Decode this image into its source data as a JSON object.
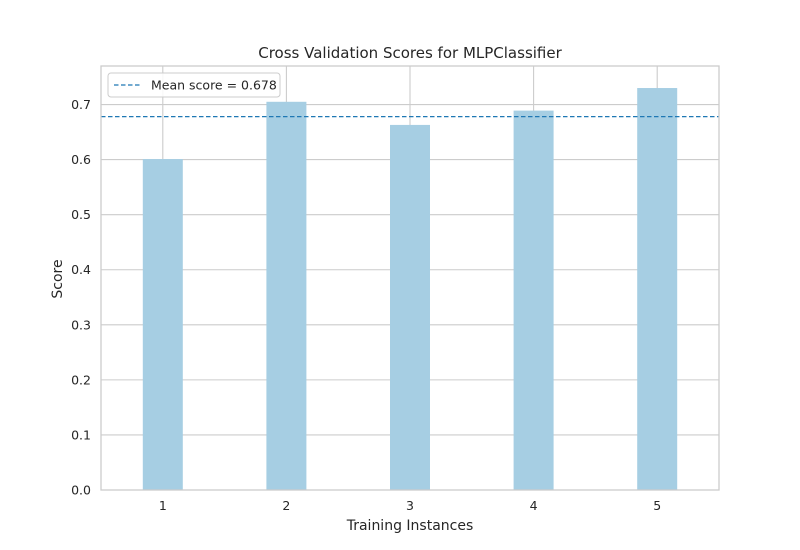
{
  "chart_data": {
    "type": "bar",
    "title": "Cross Validation Scores for MLPClassifier",
    "xlabel": "Training Instances",
    "ylabel": "Score",
    "categories": [
      "1",
      "2",
      "3",
      "4",
      "5"
    ],
    "values": [
      0.601,
      0.705,
      0.663,
      0.689,
      0.73
    ],
    "ylim": [
      0.0,
      0.77
    ],
    "yticks": [
      "0.0",
      "0.1",
      "0.2",
      "0.3",
      "0.4",
      "0.5",
      "0.6",
      "0.7"
    ],
    "mean_score": 0.678,
    "legend": {
      "label": "Mean score = 0.678",
      "placement": "top-left"
    },
    "grid": true,
    "colors": {
      "bar": "#a6cee3",
      "mean_line": "#1f78b4",
      "grid": "#cccccc",
      "axes_edge": "#cccccc",
      "text": "#262626"
    }
  }
}
